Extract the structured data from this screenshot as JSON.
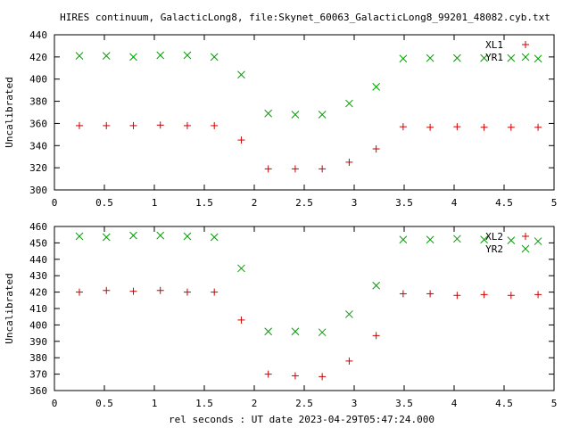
{
  "title": "HIRES continuum, GalacticLong8, file:Skynet_60063_GalacticLong8_99201_48082.cyb.txt",
  "xlabel": "rel seconds : UT date 2023-04-29T05:47:24.000",
  "colors": {
    "series_a": "#cc0000",
    "series_b": "#00a000",
    "axis": "#000000"
  },
  "chart_data": [
    {
      "type": "scatter",
      "ylabel": "Uncalibrated",
      "xlim": [
        0,
        5
      ],
      "ylim": [
        300,
        440
      ],
      "xticks": [
        0,
        0.5,
        1,
        1.5,
        2,
        2.5,
        3,
        3.5,
        4,
        4.5,
        5
      ],
      "xtick_labels": [
        "0",
        "0.5",
        "1",
        "1.5",
        "2",
        "2.5",
        "3",
        "3.5",
        "4",
        "4.5",
        "5"
      ],
      "yticks": [
        300,
        320,
        340,
        360,
        380,
        400,
        420,
        440
      ],
      "ytick_labels": [
        "300",
        "320",
        "340",
        "360",
        "380",
        "400",
        "420",
        "440"
      ],
      "grid": false,
      "legend": "top-right",
      "series": [
        {
          "name": "XL1",
          "marker": "plus",
          "color": "#cc0000",
          "x": [
            0.25,
            0.52,
            0.79,
            1.06,
            1.33,
            1.6,
            1.87,
            2.14,
            2.41,
            2.68,
            2.95,
            3.22,
            3.49,
            3.76,
            4.03,
            4.3,
            4.57,
            4.84
          ],
          "y": [
            358,
            358,
            358,
            358.5,
            358,
            358,
            345,
            319,
            319,
            319,
            325,
            337,
            357,
            356.5,
            357,
            356.5,
            356.5,
            356.5
          ]
        },
        {
          "name": "YR1",
          "marker": "cross",
          "color": "#00a000",
          "x": [
            0.25,
            0.52,
            0.79,
            1.06,
            1.33,
            1.6,
            1.87,
            2.14,
            2.41,
            2.68,
            2.95,
            3.22,
            3.49,
            3.76,
            4.03,
            4.3,
            4.57,
            4.84
          ],
          "y": [
            421,
            421,
            420,
            421.5,
            421.5,
            420,
            404,
            369,
            368,
            368,
            378,
            393,
            418.5,
            419,
            419,
            419,
            419,
            418.5
          ]
        }
      ]
    },
    {
      "type": "scatter",
      "ylabel": "Uncalibrated",
      "xlim": [
        0,
        5
      ],
      "ylim": [
        360,
        460
      ],
      "xticks": [
        0,
        0.5,
        1,
        1.5,
        2,
        2.5,
        3,
        3.5,
        4,
        4.5,
        5
      ],
      "xtick_labels": [
        "0",
        "0.5",
        "1",
        "1.5",
        "2",
        "2.5",
        "3",
        "3.5",
        "4",
        "4.5",
        "5"
      ],
      "yticks": [
        360,
        370,
        380,
        390,
        400,
        410,
        420,
        430,
        440,
        450,
        460
      ],
      "ytick_labels": [
        "360",
        "370",
        "380",
        "390",
        "400",
        "410",
        "420",
        "430",
        "440",
        "450",
        "460"
      ],
      "grid": false,
      "legend": "top-right",
      "series": [
        {
          "name": "XL2",
          "marker": "plus",
          "color": "#cc0000",
          "x": [
            0.25,
            0.52,
            0.79,
            1.06,
            1.33,
            1.6,
            1.87,
            2.14,
            2.41,
            2.68,
            2.95,
            3.22,
            3.49,
            3.76,
            4.03,
            4.3,
            4.57,
            4.84
          ],
          "y": [
            420,
            421,
            420.5,
            421,
            420,
            420,
            403,
            370,
            369,
            368.5,
            378,
            393.5,
            419,
            419,
            418,
            418.5,
            418,
            418.5
          ]
        },
        {
          "name": "YR2",
          "marker": "cross",
          "color": "#00a000",
          "x": [
            0.25,
            0.52,
            0.79,
            1.06,
            1.33,
            1.6,
            1.87,
            2.14,
            2.41,
            2.68,
            2.95,
            3.22,
            3.49,
            3.76,
            4.03,
            4.3,
            4.57,
            4.84
          ],
          "y": [
            454,
            453.5,
            454.5,
            454.5,
            454,
            453.5,
            434.5,
            396,
            396,
            395.5,
            406.5,
            424,
            452,
            452,
            452.5,
            452,
            451.5,
            451
          ]
        }
      ]
    }
  ]
}
